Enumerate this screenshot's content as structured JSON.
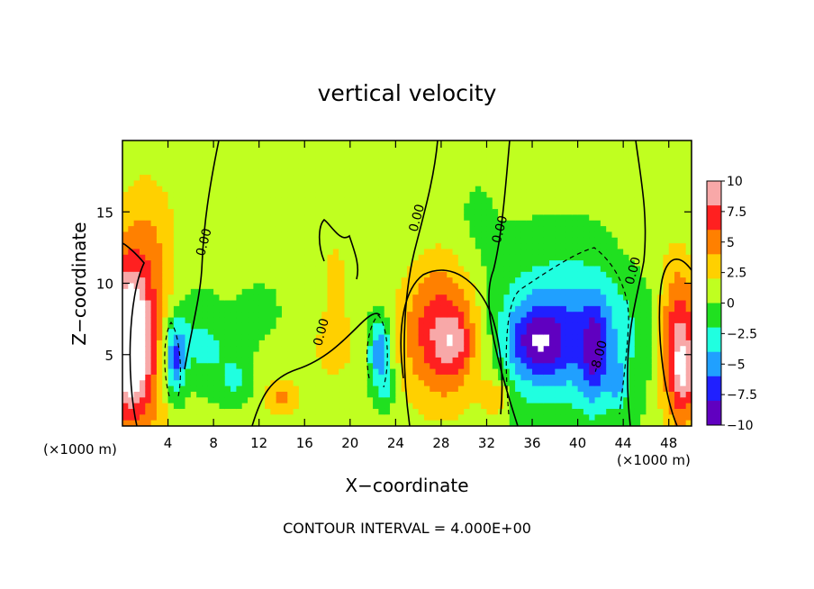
{
  "chart_data": {
    "type": "heatmap",
    "title": "vertical velocity",
    "xlabel": "X−coordinate",
    "ylabel": "Z−coordinate",
    "x_unit_left": "(×1000 m)",
    "x_unit_right": "(×1000 m)",
    "footer": "CONTOUR INTERVAL = 4.000E+00",
    "xlim": [
      0,
      50
    ],
    "ylim": [
      0,
      20
    ],
    "x_ticks": [
      4,
      8,
      12,
      16,
      20,
      24,
      28,
      32,
      36,
      40,
      44,
      48
    ],
    "y_ticks": [
      5,
      10,
      15
    ],
    "colorbar": {
      "range": [
        -10,
        10
      ],
      "ticks": [
        10,
        7.5,
        5,
        2.5,
        0,
        -2.5,
        -5,
        -7.5,
        -10
      ],
      "tick_labels": [
        "10",
        "7.5",
        "5",
        "2.5",
        "0",
        "−2.5",
        "−5",
        "−7.5",
        "−10"
      ],
      "colors": [
        "#f8a8a8",
        "#ff2020",
        "#ff8000",
        "#ffd000",
        "#c0ff20",
        "#20e020",
        "#20ffe0",
        "#20a0ff",
        "#2020ff",
        "#6000c0"
      ]
    },
    "contour_labels": [
      {
        "text": "0.00",
        "x": 7.5,
        "y": 12.8
      },
      {
        "text": "0.00",
        "x": 26.2,
        "y": 14.5
      },
      {
        "text": "0.00",
        "x": 33.5,
        "y": 13.7
      },
      {
        "text": "0.00",
        "x": 45.2,
        "y": 10.8
      },
      {
        "text": "0.00",
        "x": 17.8,
        "y": 6.5
      },
      {
        "text": "-8.00",
        "x": 42.2,
        "y": 4.8
      }
    ],
    "blobs": [
      {
        "x": 0.8,
        "z": 6.0,
        "rx": 3.2,
        "rz": 7.2,
        "v": 9.5
      },
      {
        "x": 0.7,
        "z": 6.0,
        "rx": 1.2,
        "rz": 3.5,
        "v": 8.0
      },
      {
        "x": 48.9,
        "z": 5.5,
        "rx": 1.7,
        "rz": 5.5,
        "v": 9.0
      },
      {
        "x": 49.4,
        "z": 3.5,
        "rx": 0.8,
        "rz": 2.2,
        "v": 4.0
      },
      {
        "x": 28.2,
        "z": 6.5,
        "rx": 3.6,
        "rz": 5.0,
        "v": 8.0
      },
      {
        "x": 29.2,
        "z": 5.8,
        "rx": 1.5,
        "rz": 1.8,
        "v": 3.0
      },
      {
        "x": 32.8,
        "z": 2.0,
        "rx": 1.3,
        "rz": 1.4,
        "v": 4.0
      },
      {
        "x": 38.6,
        "z": 6.5,
        "rx": 6.5,
        "rz": 5.0,
        "v": -6.5
      },
      {
        "x": 36.5,
        "z": 5.8,
        "rx": 2.3,
        "rz": 2.4,
        "v": -5.0
      },
      {
        "x": 41.5,
        "z": 5.0,
        "rx": 1.2,
        "rz": 3.6,
        "v": -5.0
      },
      {
        "x": 43.5,
        "z": 3.0,
        "rx": 0.8,
        "rz": 1.8,
        "v": -3.0
      },
      {
        "x": 4.6,
        "z": 4.5,
        "rx": 0.9,
        "rz": 2.8,
        "v": -7.0
      },
      {
        "x": 5.3,
        "z": 6.5,
        "rx": 2.6,
        "rz": 3.0,
        "v": -2.5
      },
      {
        "x": 8.0,
        "z": 5.0,
        "rx": 2.5,
        "rz": 2.5,
        "v": -2.0
      },
      {
        "x": 10.0,
        "z": 3.2,
        "rx": 1.2,
        "rz": 1.4,
        "v": -2.5
      },
      {
        "x": 22.6,
        "z": 5.2,
        "rx": 1.0,
        "rz": 2.4,
        "v": -7.0
      },
      {
        "x": 23.2,
        "z": 2.5,
        "rx": 0.7,
        "rz": 1.2,
        "v": -3.0
      },
      {
        "x": 14.0,
        "z": 2.0,
        "rx": 1.6,
        "rz": 1.3,
        "v": 4.0
      },
      {
        "x": 18.7,
        "z": 10.5,
        "rx": 2.0,
        "rz": 5.5,
        "v": 1.8
      },
      {
        "x": 18.5,
        "z": 5.0,
        "rx": 3.0,
        "rz": 2.8,
        "v": 1.5
      },
      {
        "x": 2.6,
        "z": 14.0,
        "rx": 2.5,
        "rz": 5.0,
        "v": 1.6
      },
      {
        "x": 12.0,
        "z": 8.0,
        "rx": 2.0,
        "rz": 2.0,
        "v": -1.0
      },
      {
        "x": 46.0,
        "z": 14.0,
        "rx": 2.5,
        "rz": 4.0,
        "v": 1.0
      },
      {
        "x": 31.0,
        "z": 13.0,
        "rx": 2.0,
        "rz": 4.0,
        "v": -1.0
      }
    ]
  }
}
